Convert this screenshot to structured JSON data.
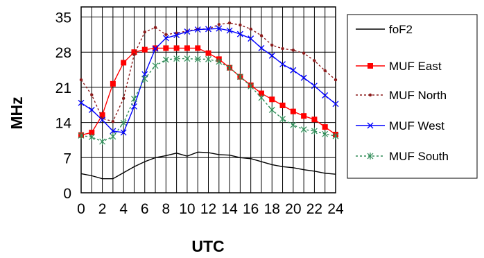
{
  "chart_data": {
    "type": "line",
    "title": "",
    "xlabel": "UTC",
    "ylabel": "MHz",
    "x": [
      0,
      1,
      2,
      3,
      4,
      5,
      6,
      7,
      8,
      9,
      10,
      11,
      12,
      13,
      14,
      15,
      16,
      17,
      18,
      19,
      20,
      21,
      22,
      23,
      24
    ],
    "xticks": [
      "0",
      "2",
      "4",
      "6",
      "8",
      "10",
      "12",
      "14",
      "16",
      "18",
      "20",
      "22",
      "24"
    ],
    "xlim": [
      0,
      24
    ],
    "yticks": [
      0,
      7,
      14,
      21,
      28,
      35
    ],
    "ylim": [
      0,
      35
    ],
    "ygrid_extra_top": true,
    "grid": true,
    "legend": "right",
    "series": [
      {
        "name": "foF2",
        "color": "#000000",
        "dash": "",
        "marker": "none",
        "values": [
          3.8,
          3.4,
          2.8,
          2.8,
          4.0,
          5.2,
          6.2,
          7.0,
          7.4,
          7.9,
          7.3,
          8.1,
          8.0,
          7.6,
          7.5,
          7.0,
          6.8,
          6.2,
          5.6,
          5.2,
          5.0,
          4.6,
          4.3,
          3.9,
          3.7
        ]
      },
      {
        "name": "MUF East",
        "color": "#ff0000",
        "dash": "",
        "marker": "square",
        "values": [
          11.5,
          12.0,
          15.5,
          21.7,
          25.9,
          28.0,
          28.5,
          28.8,
          28.8,
          28.8,
          28.8,
          28.8,
          27.8,
          26.6,
          24.9,
          23.1,
          21.4,
          19.8,
          18.6,
          17.4,
          16.2,
          15.3,
          14.6,
          13.1,
          11.6
        ]
      },
      {
        "name": "MUF North",
        "color": "#8b1a1a",
        "dash": "3,3",
        "marker": "dot",
        "values": [
          22.5,
          19.5,
          14.8,
          14.2,
          18.8,
          27.5,
          32.0,
          32.9,
          31.5,
          31.8,
          32.2,
          32.6,
          32.6,
          33.5,
          33.8,
          33.4,
          32.6,
          31.3,
          29.4,
          28.7,
          28.4,
          27.8,
          26.3,
          24.3,
          22.5
        ]
      },
      {
        "name": "MUF West",
        "color": "#0000ff",
        "dash": "",
        "marker": "x",
        "values": [
          17.9,
          16.5,
          14.5,
          12.3,
          12.0,
          17.2,
          23.6,
          28.7,
          30.8,
          31.4,
          32.1,
          32.5,
          32.6,
          32.7,
          32.3,
          31.6,
          30.7,
          28.8,
          27.3,
          25.6,
          24.4,
          22.9,
          21.3,
          19.4,
          17.7
        ]
      },
      {
        "name": "MUF South",
        "color": "#2e8b57",
        "dash": "3,3",
        "marker": "star",
        "values": [
          11.4,
          11.1,
          10.2,
          11.2,
          13.9,
          18.7,
          22.7,
          25.3,
          26.5,
          26.7,
          26.7,
          26.6,
          26.6,
          26.1,
          24.9,
          23.1,
          21.2,
          18.9,
          16.5,
          14.7,
          13.5,
          12.6,
          12.3,
          11.7,
          11.3
        ]
      }
    ]
  }
}
